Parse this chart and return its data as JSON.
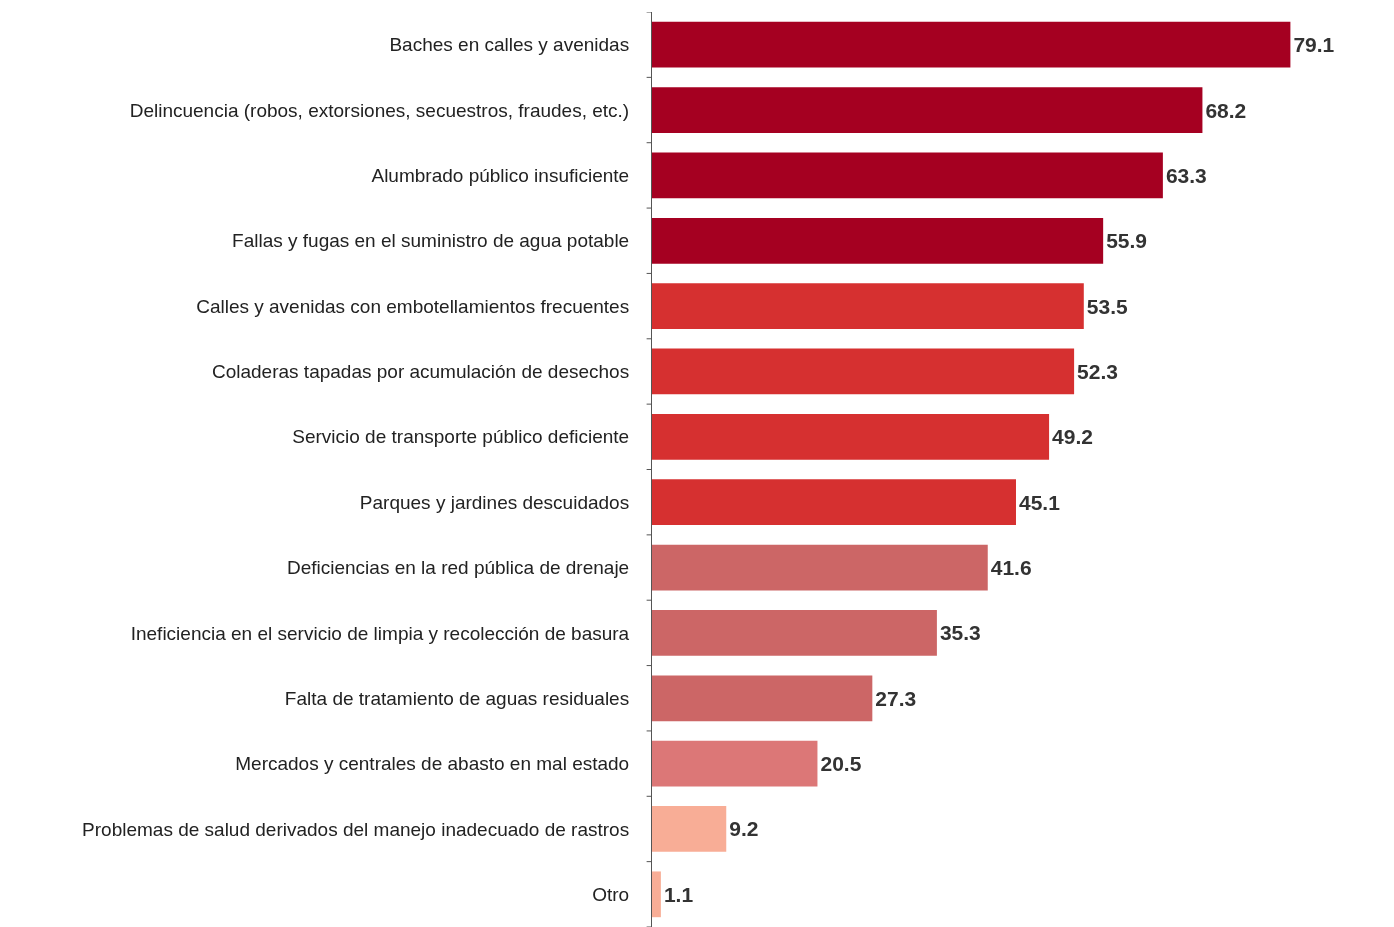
{
  "chart_data": {
    "type": "bar",
    "orientation": "horizontal",
    "data_labels": true,
    "categories": [
      "Baches en calles y avenidas",
      "Delincuencia (robos, extorsiones, secuestros, fraudes, etc.)",
      "Alumbrado público insuficiente",
      "Fallas y fugas en el suministro de agua potable",
      "Calles y avenidas con embotellamientos frecuentes",
      "Coladeras tapadas por acumulación de desechos",
      "Servicio de transporte público deficiente",
      "Parques y jardines descuidados",
      "Deficiencias en la red pública de drenaje",
      "Ineficiencia en el servicio de limpia y recolección de basura",
      "Falta de tratamiento de aguas residuales",
      "Mercados y centrales de abasto en mal estado",
      "Problemas de salud derivados del manejo inadecuado de rastros",
      "Otro"
    ],
    "values": [
      79.1,
      68.2,
      63.3,
      55.9,
      53.5,
      52.3,
      49.2,
      45.1,
      41.6,
      35.3,
      27.3,
      20.5,
      9.2,
      1.1
    ],
    "colors": [
      "#a50021",
      "#a50021",
      "#a50021",
      "#a50021",
      "#d63030",
      "#d63030",
      "#d63030",
      "#d63030",
      "#cc6666",
      "#cc6666",
      "#cc6666",
      "#dc7777",
      "#f8ad96",
      "#f8ad96"
    ]
  }
}
